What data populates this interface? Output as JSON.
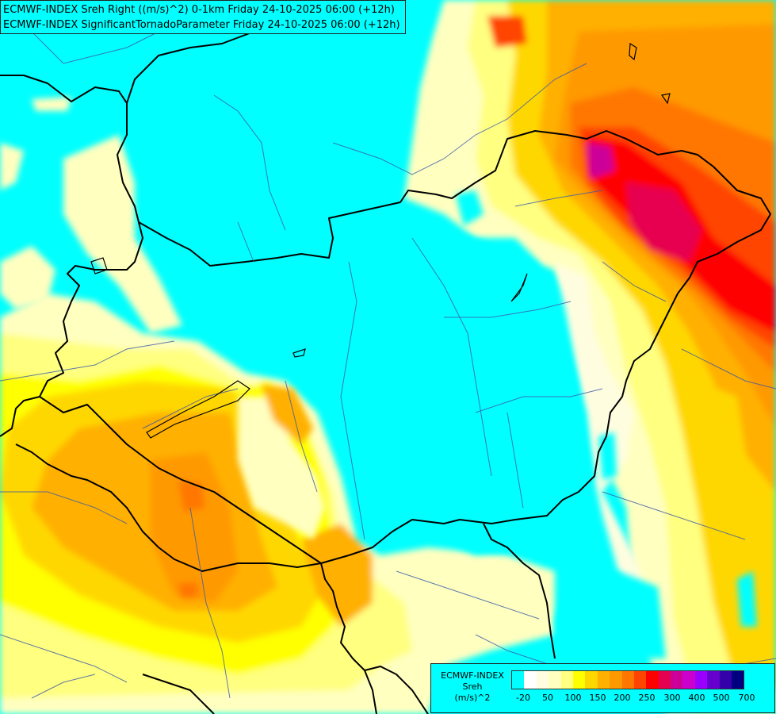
{
  "title": {
    "line1": "ECMWF-INDEX Sreh Right ((m/s)^2) 0-1km Friday 24-10-2025 06:00 (+12h)",
    "line2": "ECMWF-INDEX SignificantTornadoParameter Friday 24-10-2025 06:00 (+12h)"
  },
  "legend": {
    "source": "ECMWF-INDEX",
    "variable": "Sreh",
    "unit": "(m/s)^2",
    "colors": [
      "#00ffff",
      "#ffffff",
      "#fffde0",
      "#ffffc0",
      "#ffff80",
      "#ffff00",
      "#ffd700",
      "#ffb000",
      "#ff9900",
      "#ff7700",
      "#ff4400",
      "#ff0000",
      "#e60050",
      "#cc0099",
      "#cc00cc",
      "#9900ff",
      "#6600cc",
      "#3300aa",
      "#000080"
    ],
    "tick_labels": [
      "-20",
      "50",
      "100",
      "150",
      "200",
      "250",
      "300",
      "400",
      "500",
      "700"
    ]
  }
}
